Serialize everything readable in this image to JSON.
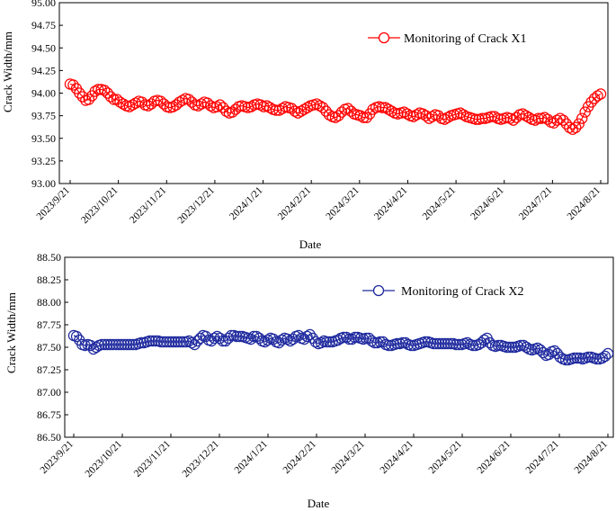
{
  "chart_data": [
    {
      "type": "line",
      "xlabel": "Date",
      "ylabel": "Crack Width/mm",
      "ylim": [
        93.0,
        95.0
      ],
      "yticks": [
        "93.00",
        "93.25",
        "93.50",
        "93.75",
        "94.00",
        "94.25",
        "94.50",
        "94.75",
        "95.00"
      ],
      "xticks": [
        "2023/9/21",
        "2023/10/21",
        "2023/11/21",
        "2023/12/21",
        "2024/1/21",
        "2024/2/21",
        "2024/3/21",
        "2024/4/21",
        "2024/5/21",
        "2024/6/21",
        "2024/7/21",
        "2024/8/21"
      ],
      "legend_position": "top-right",
      "series": [
        {
          "name": "Monitoring of Crack X1",
          "color": "#ff0000",
          "marker": "open-circle",
          "values": [
            94.1,
            94.09,
            94.05,
            94.0,
            93.96,
            93.92,
            93.93,
            93.97,
            94.02,
            94.04,
            94.04,
            94.03,
            94.0,
            93.96,
            93.93,
            93.93,
            93.9,
            93.88,
            93.86,
            93.85,
            93.87,
            93.89,
            93.91,
            93.9,
            93.87,
            93.86,
            93.88,
            93.91,
            93.92,
            93.91,
            93.88,
            93.85,
            93.84,
            93.85,
            93.87,
            93.9,
            93.92,
            93.94,
            93.93,
            93.9,
            93.87,
            93.86,
            93.88,
            93.9,
            93.89,
            93.86,
            93.84,
            93.85,
            93.87,
            93.84,
            93.8,
            93.78,
            93.79,
            93.82,
            93.85,
            93.86,
            93.85,
            93.84,
            93.85,
            93.87,
            93.88,
            93.87,
            93.85,
            93.86,
            93.84,
            93.82,
            93.81,
            93.81,
            93.83,
            93.85,
            93.84,
            93.83,
            93.8,
            93.78,
            93.8,
            93.82,
            93.84,
            93.86,
            93.87,
            93.88,
            93.86,
            93.84,
            93.8,
            93.76,
            93.74,
            93.73,
            93.75,
            93.79,
            93.82,
            93.83,
            93.8,
            93.77,
            93.76,
            93.75,
            93.73,
            93.73,
            93.77,
            93.82,
            93.84,
            93.85,
            93.84,
            93.84,
            93.82,
            93.8,
            93.78,
            93.77,
            93.78,
            93.79,
            93.77,
            93.75,
            93.74,
            93.76,
            93.78,
            93.77,
            93.75,
            93.72,
            93.74,
            93.76,
            93.75,
            93.72,
            93.71,
            93.73,
            93.75,
            93.76,
            93.77,
            93.78,
            93.76,
            93.74,
            93.73,
            93.72,
            93.71,
            93.71,
            93.72,
            93.72,
            93.73,
            93.74,
            93.74,
            93.72,
            93.71,
            93.72,
            93.73,
            93.72,
            93.7,
            93.73,
            93.76,
            93.77,
            93.75,
            93.73,
            93.71,
            93.7,
            93.72,
            93.72,
            93.73,
            93.71,
            93.68,
            93.67,
            93.7,
            93.72,
            93.7,
            93.66,
            93.62,
            93.6,
            93.62,
            93.66,
            93.72,
            93.79,
            93.85,
            93.9,
            93.94,
            93.97,
            93.99
          ]
        }
      ]
    },
    {
      "type": "line",
      "xlabel": "Date",
      "ylabel": "Crack Width/mm",
      "ylim": [
        86.5,
        88.5
      ],
      "yticks": [
        "86.50",
        "86.75",
        "87.00",
        "87.25",
        "87.50",
        "87.75",
        "88.00",
        "88.25",
        "88.50"
      ],
      "xticks": [
        "2023/9/21",
        "2023/10/21",
        "2023/11/21",
        "2023/12/21",
        "2024/1/21",
        "2024/2/21",
        "2024/3/21",
        "2024/4/21",
        "2024/5/21",
        "2024/6/21",
        "2024/7/21",
        "2024/8/21"
      ],
      "legend_position": "top-right",
      "series": [
        {
          "name": "Monitoring of Crack X2",
          "color": "#1f2a9e",
          "marker": "open-circle",
          "values": [
            87.63,
            87.62,
            87.58,
            87.53,
            87.52,
            87.53,
            87.52,
            87.48,
            87.5,
            87.52,
            87.53,
            87.53,
            87.53,
            87.53,
            87.53,
            87.53,
            87.53,
            87.53,
            87.53,
            87.53,
            87.53,
            87.53,
            87.53,
            87.54,
            87.55,
            87.55,
            87.56,
            87.57,
            87.57,
            87.57,
            87.57,
            87.56,
            87.56,
            87.56,
            87.56,
            87.56,
            87.56,
            87.56,
            87.56,
            87.56,
            87.56,
            87.57,
            87.55,
            87.53,
            87.57,
            87.6,
            87.63,
            87.62,
            87.58,
            87.57,
            87.6,
            87.62,
            87.6,
            87.57,
            87.57,
            87.6,
            87.63,
            87.63,
            87.62,
            87.62,
            87.62,
            87.61,
            87.6,
            87.59,
            87.62,
            87.62,
            87.6,
            87.57,
            87.56,
            87.58,
            87.6,
            87.59,
            87.56,
            87.55,
            87.58,
            87.6,
            87.59,
            87.57,
            87.59,
            87.62,
            87.63,
            87.6,
            87.59,
            87.62,
            87.64,
            87.6,
            87.56,
            87.54,
            87.55,
            87.57,
            87.56,
            87.56,
            87.56,
            87.57,
            87.58,
            87.6,
            87.61,
            87.61,
            87.59,
            87.59,
            87.61,
            87.61,
            87.6,
            87.59,
            87.6,
            87.6,
            87.57,
            87.55,
            87.55,
            87.56,
            87.56,
            87.53,
            87.52,
            87.52,
            87.53,
            87.54,
            87.54,
            87.55,
            87.55,
            87.53,
            87.52,
            87.52,
            87.53,
            87.54,
            87.55,
            87.56,
            87.56,
            87.55,
            87.54,
            87.54,
            87.54,
            87.54,
            87.54,
            87.54,
            87.54,
            87.54,
            87.53,
            87.53,
            87.53,
            87.54,
            87.55,
            87.53,
            87.52,
            87.52,
            87.53,
            87.55,
            87.58,
            87.6,
            87.55,
            87.52,
            87.51,
            87.52,
            87.52,
            87.51,
            87.5,
            87.5,
            87.5,
            87.5,
            87.51,
            87.52,
            87.52,
            87.5,
            87.48,
            87.47,
            87.48,
            87.49,
            87.47,
            87.44,
            87.41,
            87.42,
            87.45,
            87.46,
            87.43,
            87.39,
            87.37,
            87.36,
            87.36,
            87.37,
            87.38,
            87.38,
            87.38,
            87.37,
            87.38,
            87.39,
            87.39,
            87.38,
            87.37,
            87.37,
            87.38,
            87.4,
            87.43
          ]
        }
      ]
    }
  ]
}
